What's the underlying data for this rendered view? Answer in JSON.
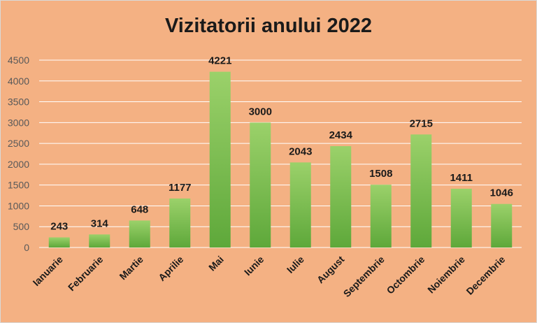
{
  "chart_data": {
    "type": "bar",
    "title": "Vizitatorii anului 2022",
    "xlabel": "",
    "ylabel": "",
    "categories": [
      "Ianuarie",
      "Februarie",
      "Martie",
      "Aprilie",
      "Mai",
      "Iunie",
      "Iulie",
      "August",
      "Septembrie",
      "Octombrie",
      "Noiembrie",
      "Decembrie"
    ],
    "values": [
      243,
      314,
      648,
      1177,
      4221,
      3000,
      2043,
      2434,
      1508,
      2715,
      1411,
      1046
    ],
    "ylim": [
      0,
      4500
    ],
    "yticks": [
      0,
      500,
      1000,
      1500,
      2000,
      2500,
      3000,
      3500,
      4000,
      4500
    ],
    "grid": true,
    "legend": "none",
    "colors": {
      "background": "#f4b183",
      "bar_top": "#9bd16a",
      "bar_bottom": "#5ea83a",
      "grid": "#ffffff"
    }
  }
}
